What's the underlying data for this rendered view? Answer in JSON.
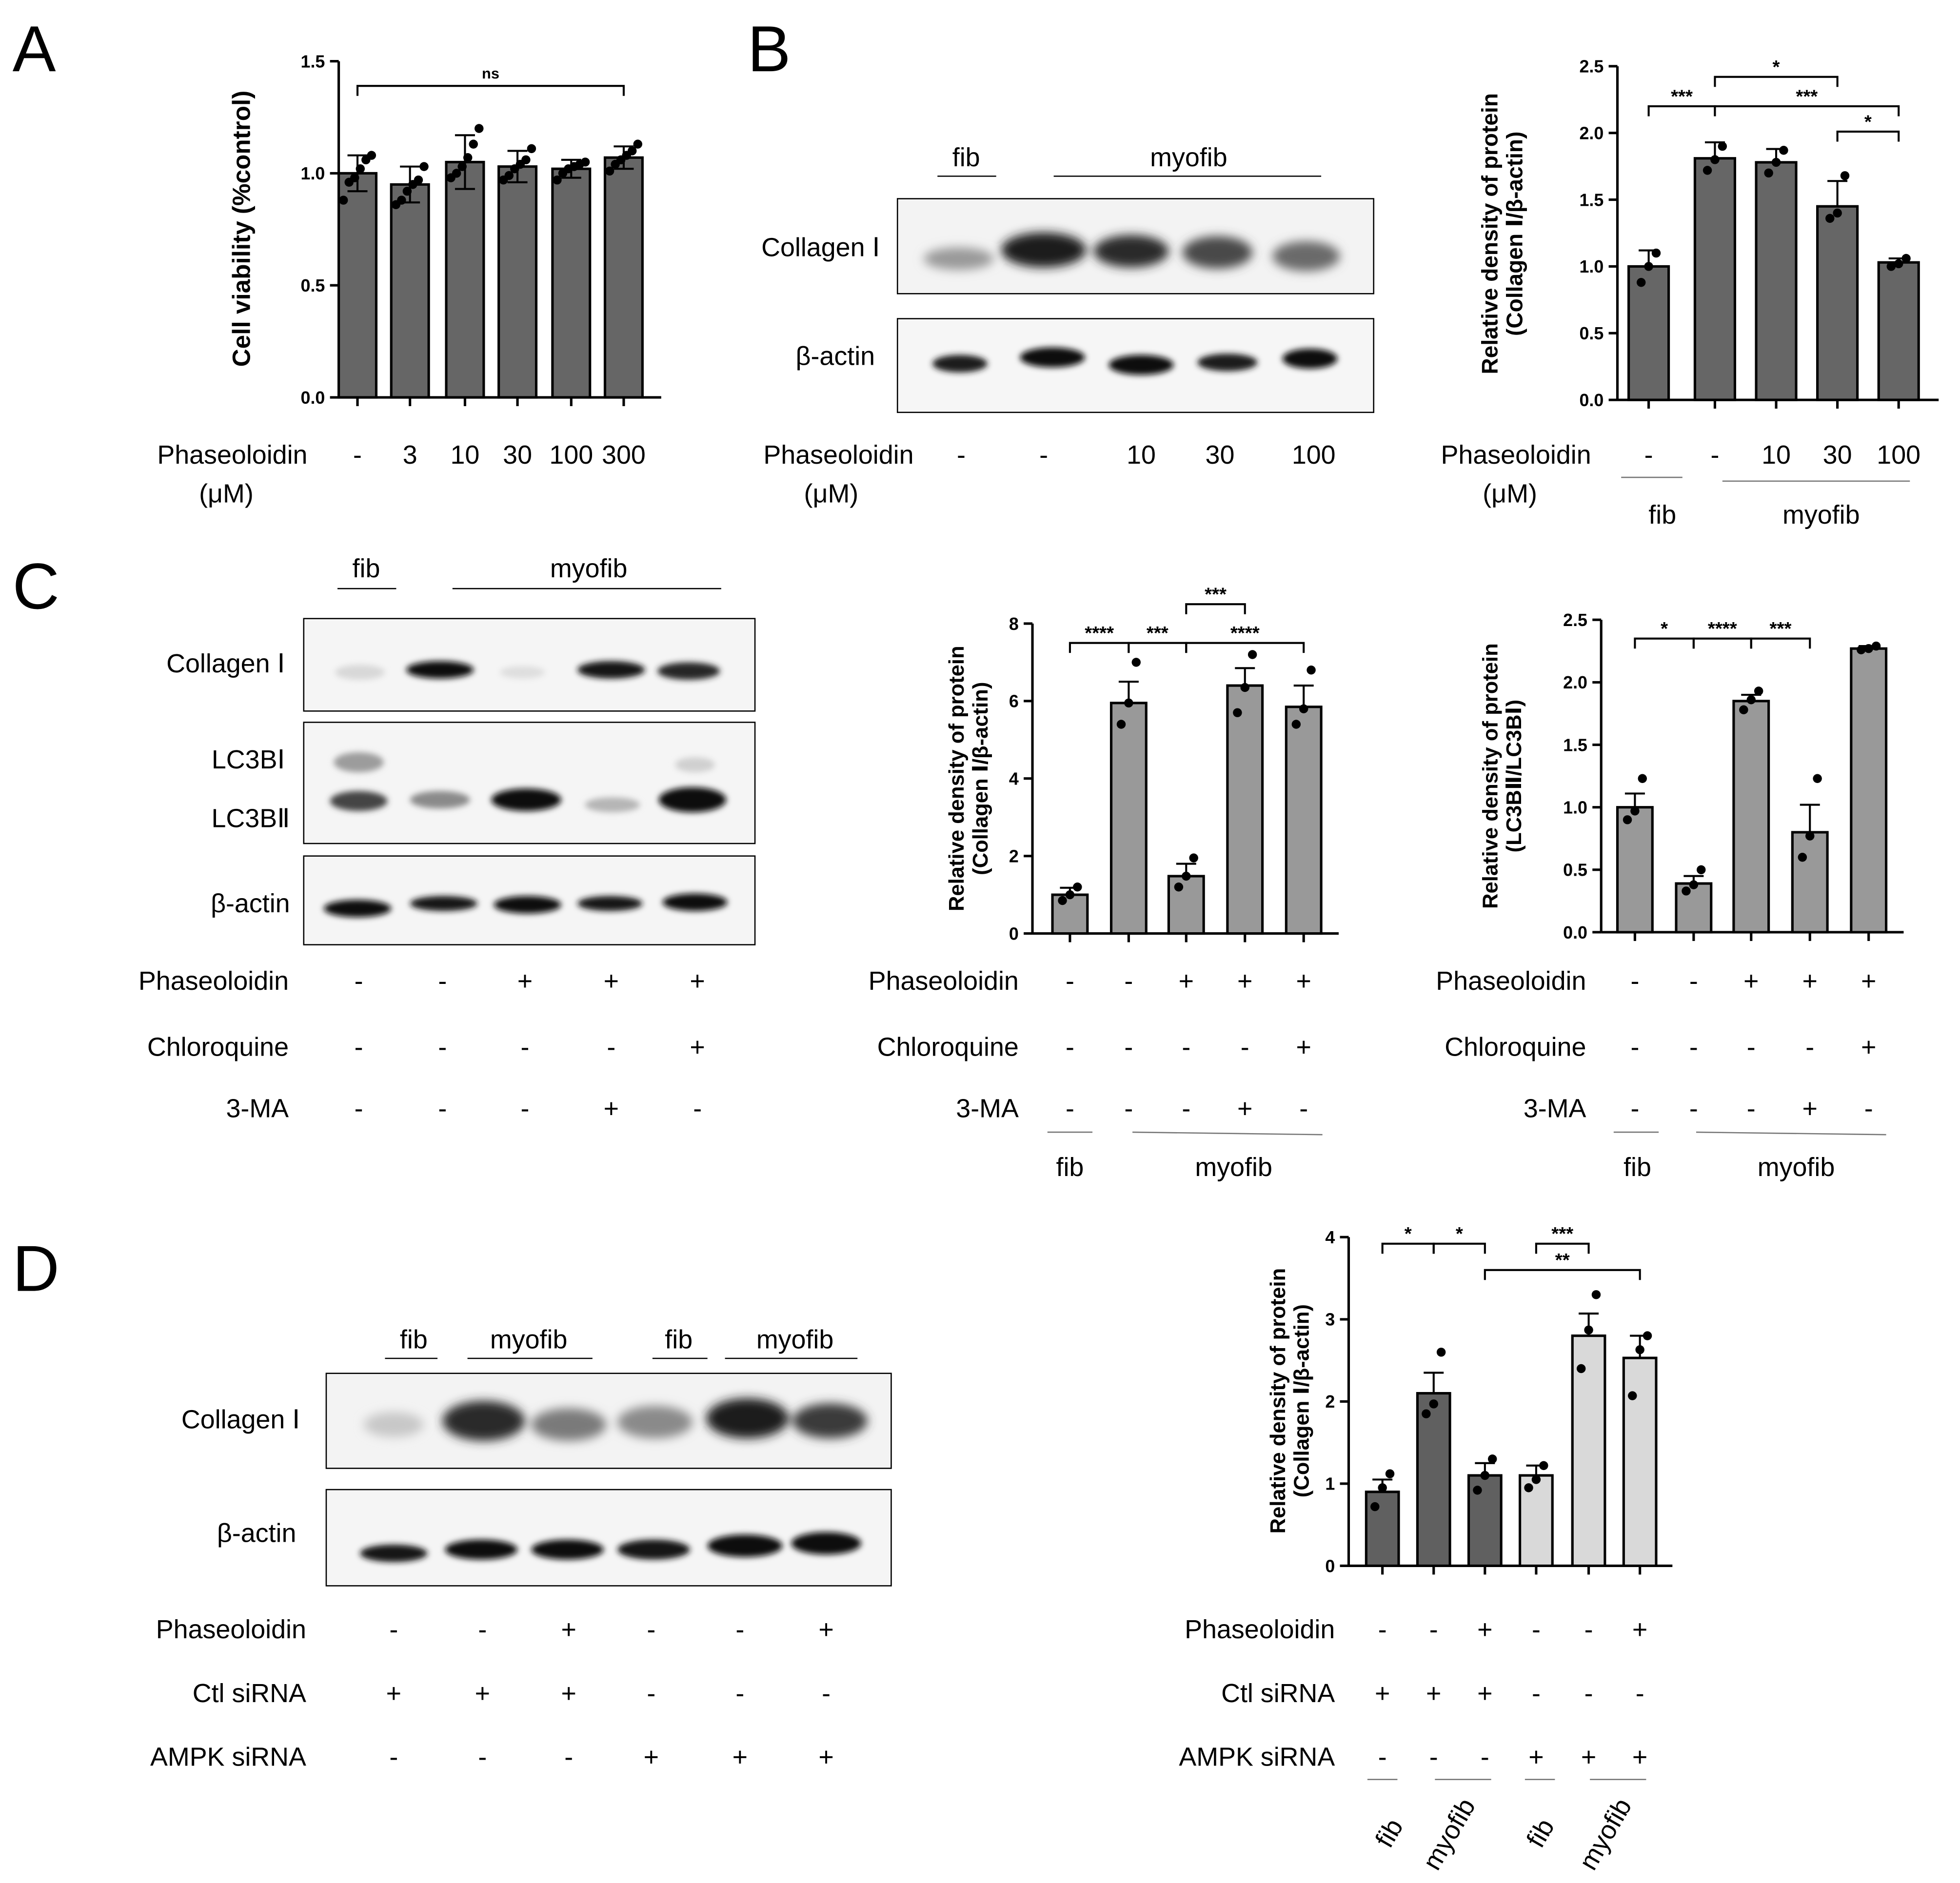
{
  "panels": {
    "A": {
      "letter": "A"
    },
    "B": {
      "letter": "B",
      "lanes": {
        "fib": "fib",
        "myofib": "myofib"
      },
      "blots": [
        "Collagen Ⅰ",
        "β-actin"
      ]
    },
    "C": {
      "letter": "C",
      "lanes": {
        "fib": "fib",
        "myofib": "myofib"
      },
      "blots": [
        "Collagen Ⅰ",
        "LC3BⅠ",
        "LC3BⅡ",
        "β-actin"
      ]
    },
    "D": {
      "letter": "D",
      "lanes": [
        "fib",
        "myofib",
        "fib",
        "myofib"
      ],
      "blots": [
        "Collagen Ⅰ",
        "β-actin"
      ]
    }
  },
  "conditions": {
    "phaseoloidin": "Phaseoloidin",
    "um": "(μM)",
    "chloroquine": "Chloroquine",
    "ma3": "3-MA",
    "ctl": "Ctl siRNA",
    "ampk": "AMPK siRNA",
    "A_doses": [
      "-",
      "3",
      "10",
      "30",
      "100",
      "300"
    ],
    "B_doses": [
      "-",
      "-",
      "10",
      "30",
      "100"
    ],
    "C_phas": [
      "-",
      "-",
      "+",
      "+",
      "+"
    ],
    "C_chlo": [
      "-",
      "-",
      "-",
      "-",
      "+"
    ],
    "C_3ma": [
      "-",
      "-",
      "-",
      "+",
      "-"
    ],
    "D_phas": [
      "-",
      "-",
      "+",
      "-",
      "-",
      "+"
    ],
    "D_ctl": [
      "+",
      "+",
      "+",
      "-",
      "-",
      "-"
    ],
    "D_ampk": [
      "-",
      "-",
      "-",
      "+",
      "+",
      "+"
    ],
    "group_fib": "fib",
    "group_myofib": "myofib"
  },
  "chart_data": [
    {
      "id": "A",
      "type": "bar",
      "ylabel": "Cell viability (%control)",
      "ylim": [
        0,
        1.5
      ],
      "yticks": [
        "0.0",
        "0.5",
        "1.0",
        "1.5"
      ],
      "categories": [
        "-",
        "3",
        "10",
        "30",
        "100",
        "300"
      ],
      "values": [
        1.0,
        0.95,
        1.05,
        1.03,
        1.02,
        1.07
      ],
      "errors": [
        0.08,
        0.08,
        0.12,
        0.07,
        0.04,
        0.05
      ],
      "points": [
        [
          0.88,
          0.96,
          0.98,
          1.02,
          1.06,
          1.08
        ],
        [
          0.86,
          0.88,
          0.92,
          0.95,
          0.97,
          1.03
        ],
        [
          0.98,
          1.0,
          1.03,
          1.07,
          1.13,
          1.2
        ],
        [
          0.97,
          0.99,
          1.02,
          1.04,
          1.06,
          1.11
        ],
        [
          0.97,
          1.0,
          1.02,
          1.03,
          1.04,
          1.05
        ],
        [
          1.01,
          1.04,
          1.06,
          1.08,
          1.1,
          1.13
        ]
      ],
      "annotations": [
        {
          "label": "ns",
          "from": 0,
          "to": 5,
          "y": 1.39
        }
      ]
    },
    {
      "id": "B",
      "type": "bar",
      "ylabel": "Relative density of protein (Collagen Ⅰ/β-actin)",
      "ylim": [
        0,
        2.5
      ],
      "yticks": [
        "0.0",
        "0.5",
        "1.0",
        "1.5",
        "2.0",
        "2.5"
      ],
      "categories": [
        "-",
        "-",
        "10",
        "30",
        "100"
      ],
      "values": [
        1.0,
        1.81,
        1.78,
        1.45,
        1.03
      ],
      "errors": [
        0.12,
        0.12,
        0.1,
        0.19,
        0.03
      ],
      "points": [
        [
          0.88,
          1.0,
          1.1
        ],
        [
          1.72,
          1.8,
          1.9
        ],
        [
          1.7,
          1.78,
          1.87
        ],
        [
          1.36,
          1.4,
          1.68
        ],
        [
          1.0,
          1.02,
          1.06
        ]
      ],
      "annotations": [
        {
          "label": "***",
          "from": 0,
          "to": 1,
          "y": 2.2
        },
        {
          "label": "*",
          "from": 1,
          "to": 3,
          "y": 2.42
        },
        {
          "label": "***",
          "from": 1,
          "to": 4,
          "y": 2.2
        },
        {
          "label": "*",
          "from": 3,
          "to": 4,
          "y": 2.01
        }
      ]
    },
    {
      "id": "C1",
      "type": "bar",
      "ylabel": "Relative density of protein (Collagen Ⅰ/β-actin)",
      "ylim": [
        0,
        8
      ],
      "yticks": [
        "0",
        "2",
        "4",
        "6",
        "8"
      ],
      "values": [
        1.0,
        5.95,
        1.48,
        6.4,
        5.85
      ],
      "errors": [
        0.18,
        0.55,
        0.32,
        0.45,
        0.55
      ],
      "points": [
        [
          0.85,
          1.0,
          1.2
        ],
        [
          5.4,
          5.95,
          7.0
        ],
        [
          1.2,
          1.48,
          1.95
        ],
        [
          5.7,
          6.35,
          7.2
        ],
        [
          5.4,
          5.8,
          6.8
        ]
      ],
      "annotations": [
        {
          "label": "****",
          "from": 0,
          "to": 1,
          "y": 7.5
        },
        {
          "label": "***",
          "from": 1,
          "to": 2,
          "y": 7.5
        },
        {
          "label": "***",
          "from": 2,
          "to": 3,
          "y": 8.5
        },
        {
          "label": "****",
          "from": 2,
          "to": 4,
          "y": 7.5
        }
      ]
    },
    {
      "id": "C2",
      "type": "bar",
      "ylabel": "Relative density of protein (LC3BⅡ/LC3BⅠ)",
      "ylim": [
        0,
        2.5
      ],
      "yticks": [
        "0.0",
        "0.5",
        "1.0",
        "1.5",
        "2.0",
        "2.5"
      ],
      "values": [
        1.0,
        0.39,
        1.85,
        0.8,
        2.27
      ],
      "errors": [
        0.11,
        0.06,
        0.05,
        0.22,
        0.02
      ],
      "points": [
        [
          0.9,
          0.97,
          1.23
        ],
        [
          0.33,
          0.38,
          0.5
        ],
        [
          1.78,
          1.86,
          1.93
        ],
        [
          0.6,
          0.77,
          1.23
        ],
        [
          2.26,
          2.27,
          2.29
        ]
      ],
      "annotations": [
        {
          "label": "*",
          "from": 0,
          "to": 1,
          "y": 2.35
        },
        {
          "label": "****",
          "from": 1,
          "to": 2,
          "y": 2.35
        },
        {
          "label": "***",
          "from": 2,
          "to": 3,
          "y": 2.35
        }
      ]
    },
    {
      "id": "D",
      "type": "bar",
      "ylabel": "Relative density of protein (Collagen Ⅰ/β-actin)",
      "ylim": [
        0,
        4
      ],
      "yticks": [
        "0",
        "1",
        "2",
        "3",
        "4"
      ],
      "values": [
        0.9,
        2.1,
        1.1,
        1.1,
        2.8,
        2.53
      ],
      "errors": [
        0.15,
        0.25,
        0.15,
        0.12,
        0.27,
        0.27
      ],
      "points": [
        [
          0.72,
          0.95,
          1.12
        ],
        [
          1.85,
          1.97,
          2.6
        ],
        [
          0.92,
          1.1,
          1.3
        ],
        [
          0.95,
          1.05,
          1.22
        ],
        [
          2.4,
          2.87,
          3.3
        ],
        [
          2.07,
          2.63,
          2.8
        ]
      ],
      "colors": [
        "#606060",
        "#606060",
        "#606060",
        "#d9d9d9",
        "#d9d9d9",
        "#d9d9d9"
      ],
      "annotations": [
        {
          "label": "*",
          "from": 0,
          "to": 1,
          "y": 3.92
        },
        {
          "label": "*",
          "from": 1,
          "to": 2,
          "y": 3.92
        },
        {
          "label": "***",
          "from": 3,
          "to": 4,
          "y": 3.92
        },
        {
          "label": "**",
          "from": 2,
          "to": 5,
          "y": 3.6
        }
      ]
    }
  ]
}
